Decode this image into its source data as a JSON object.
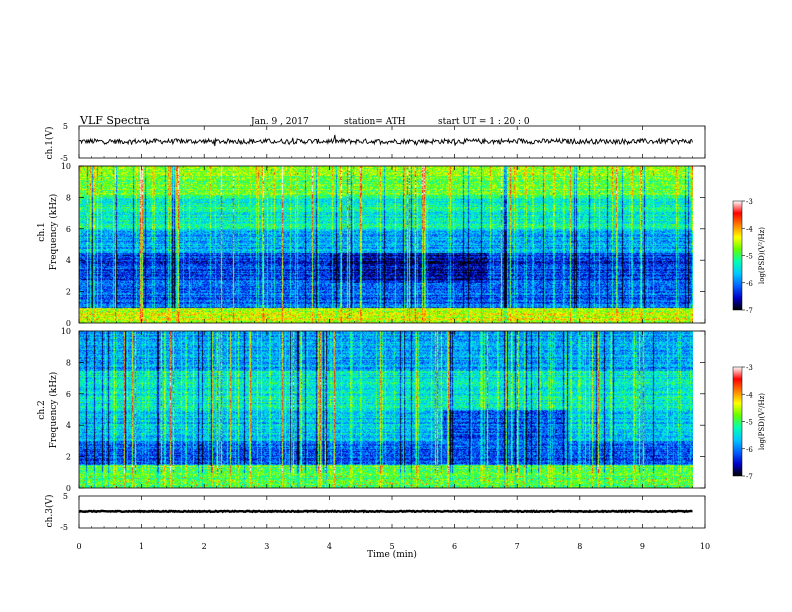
{
  "header": {
    "title": "VLF  Spectra",
    "date": "Jan.  9  , 2017",
    "station": "station= ATH",
    "start": "start  UT  =   1  : 20 : 0"
  },
  "chart_data": [
    {
      "type": "line",
      "name": "ch1-waveform",
      "ylabel": "ch.1(V)",
      "ylim": [
        -5,
        5
      ],
      "yticks": [
        "5",
        "-5"
      ],
      "xlim": [
        0,
        10
      ],
      "trace": {
        "mean_v": 0.2,
        "ripple_v": 0.8,
        "end_min": 9.8
      }
    },
    {
      "type": "heatmap",
      "name": "ch1-spectrogram",
      "ylabel": "ch.1\nFrequency (kHz)",
      "ylim": [
        0,
        10
      ],
      "yticks": [
        "0",
        "2",
        "4",
        "6",
        "8",
        "10"
      ],
      "xlim": [
        0,
        10
      ],
      "data_end_min": 9.8,
      "colorbar": {
        "label": "log(PSD)(V²/Hz)",
        "range": [
          -7,
          -3
        ],
        "ticks": [
          "-3",
          "-4",
          "-5",
          "-6",
          "-7"
        ]
      }
    },
    {
      "type": "heatmap",
      "name": "ch2-spectrogram",
      "ylabel": "ch.2\nFrequency (kHz)",
      "ylim": [
        0,
        10
      ],
      "yticks": [
        "0",
        "2",
        "4",
        "6",
        "8",
        "10"
      ],
      "xlim": [
        0,
        10
      ],
      "data_end_min": 9.8,
      "colorbar": {
        "label": "log(PSD)(V²/Hz)",
        "range": [
          -7,
          -3
        ],
        "ticks": [
          "-3",
          "-4",
          "-5",
          "-6",
          "-7"
        ]
      }
    },
    {
      "type": "line",
      "name": "ch3-waveform",
      "ylabel": "ch.3(V)",
      "ylim": [
        -5,
        5
      ],
      "yticks": [
        "5",
        "-5"
      ],
      "xlim": [
        0,
        10
      ],
      "trace": {
        "mean_v": 0.2,
        "ripple_v": 0.15,
        "end_min": 9.8
      },
      "xlabel": "Time  (min)",
      "xticks": [
        "0",
        "1",
        "2",
        "3",
        "4",
        "5",
        "6",
        "7",
        "8",
        "9",
        "10"
      ]
    }
  ],
  "colors": {
    "colormap": [
      "#000000",
      "#0000c8",
      "#0064ff",
      "#00c8ff",
      "#00ffb4",
      "#64ff00",
      "#ffff00",
      "#ff8000",
      "#ff0000",
      "#ffffff"
    ]
  }
}
